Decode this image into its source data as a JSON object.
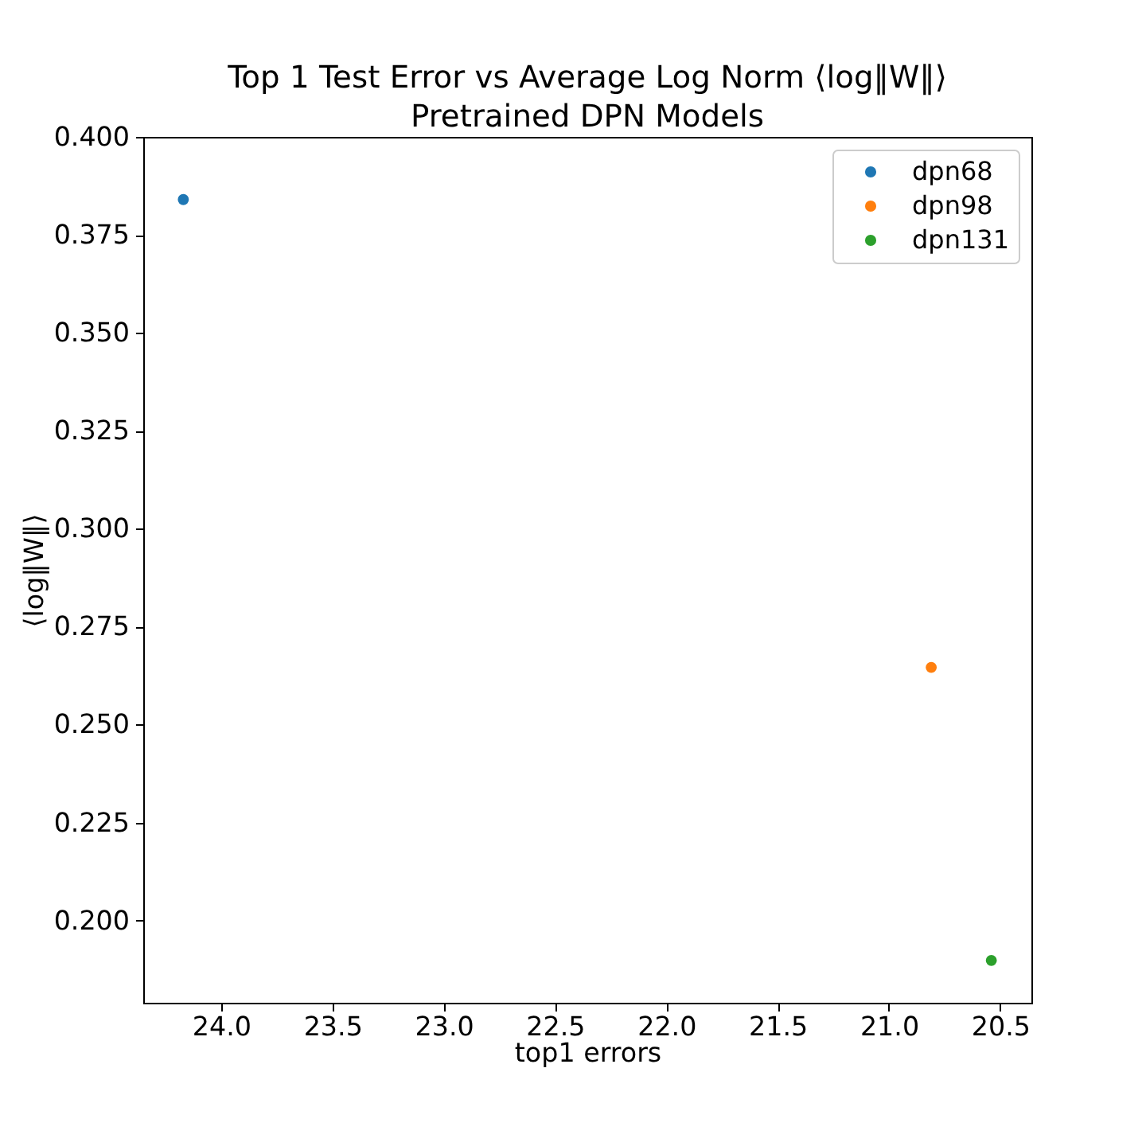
{
  "chart_data": {
    "type": "scatter",
    "title": "Top 1 Test Error vs  Average Log Norm ⟨log‖W‖⟩",
    "subtitle": "Pretrained DPN Models",
    "xlabel": "top1 errors",
    "ylabel": "⟨log‖W‖⟩",
    "series": [
      {
        "name": "dpn68",
        "color": "#1f77b4",
        "x": [
          24.17
        ],
        "values": [
          0.384
        ]
      },
      {
        "name": "dpn98",
        "color": "#ff7f0e",
        "x": [
          20.81
        ],
        "values": [
          0.2646
        ]
      },
      {
        "name": "dpn131",
        "color": "#2ca02c",
        "x": [
          20.54
        ],
        "values": [
          0.1898
        ]
      }
    ],
    "xlim": [
      24.35,
      20.36
    ],
    "ylim": [
      0.179,
      0.4
    ],
    "xticks": [
      {
        "value": 24,
        "label": "24.0"
      },
      {
        "value": 23.5,
        "label": "23.5"
      },
      {
        "value": 23,
        "label": "23.0"
      },
      {
        "value": 22.5,
        "label": "22.5"
      },
      {
        "value": 22,
        "label": "22.0"
      },
      {
        "value": 21.5,
        "label": "21.5"
      },
      {
        "value": 21,
        "label": "21.0"
      },
      {
        "value": 20.5,
        "label": "20.5"
      }
    ],
    "yticks": [
      {
        "value": 0.2,
        "label": "0.200"
      },
      {
        "value": 0.225,
        "label": "0.225"
      },
      {
        "value": 0.25,
        "label": "0.250"
      },
      {
        "value": 0.275,
        "label": "0.275"
      },
      {
        "value": 0.3,
        "label": "0.300"
      },
      {
        "value": 0.325,
        "label": "0.325"
      },
      {
        "value": 0.35,
        "label": "0.350"
      },
      {
        "value": 0.375,
        "label": "0.375"
      },
      {
        "value": 0.4,
        "label": "0.400"
      }
    ],
    "legend": "top right",
    "marker": "circle",
    "grid": false
  }
}
